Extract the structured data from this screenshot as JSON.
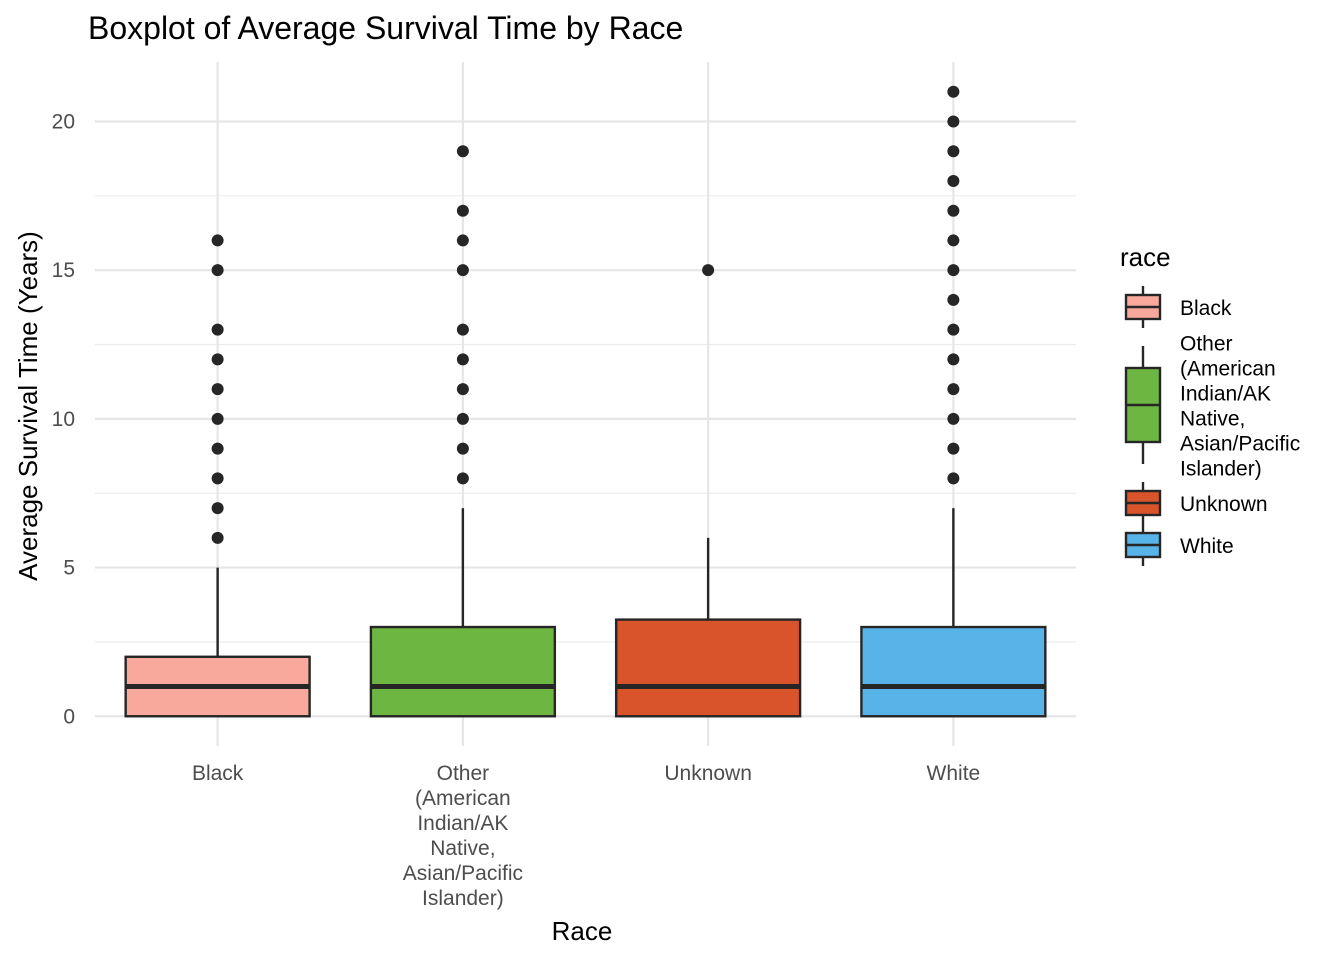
{
  "chart_data": {
    "type": "boxplot",
    "title": "Boxplot of Average Survival Time by Race",
    "xlabel": "Race",
    "ylabel": "Average Survival Time (Years)",
    "ylim": [
      -1,
      22
    ],
    "yticks": [
      0,
      5,
      10,
      15,
      20
    ],
    "grid": true,
    "legend": {
      "title": "race",
      "position": "right"
    },
    "categories": [
      {
        "label_lines": [
          "Black"
        ],
        "legend_lines": [
          "Black"
        ],
        "color": "#F8A99C",
        "min": 0,
        "q1": 0,
        "median": 1,
        "q3": 2,
        "max": 5,
        "outliers": [
          6,
          7,
          8,
          9,
          10,
          11,
          12,
          13,
          15,
          16
        ]
      },
      {
        "label_lines": [
          "Other",
          "(American",
          "Indian/AK",
          "Native,",
          "Asian/Pacific",
          "Islander)"
        ],
        "legend_lines": [
          "Other",
          "(American",
          "Indian/AK",
          "Native,",
          "Asian/Pacific",
          "Islander)"
        ],
        "color": "#6DB642",
        "min": 0,
        "q1": 0,
        "median": 1,
        "q3": 3,
        "max": 7,
        "outliers": [
          8,
          9,
          10,
          11,
          12,
          13,
          15,
          16,
          17,
          19
        ]
      },
      {
        "label_lines": [
          "Unknown"
        ],
        "legend_lines": [
          "Unknown"
        ],
        "color": "#D9532B",
        "min": 0,
        "q1": 0,
        "median": 1,
        "q3": 3.25,
        "max": 6,
        "outliers": [
          15
        ]
      },
      {
        "label_lines": [
          "White"
        ],
        "legend_lines": [
          "White"
        ],
        "color": "#58B3E8",
        "min": 0,
        "q1": 0,
        "median": 1,
        "q3": 3,
        "max": 7,
        "outliers": [
          8,
          9,
          10,
          11,
          12,
          13,
          14,
          15,
          16,
          17,
          18,
          19,
          20,
          21
        ]
      }
    ]
  }
}
